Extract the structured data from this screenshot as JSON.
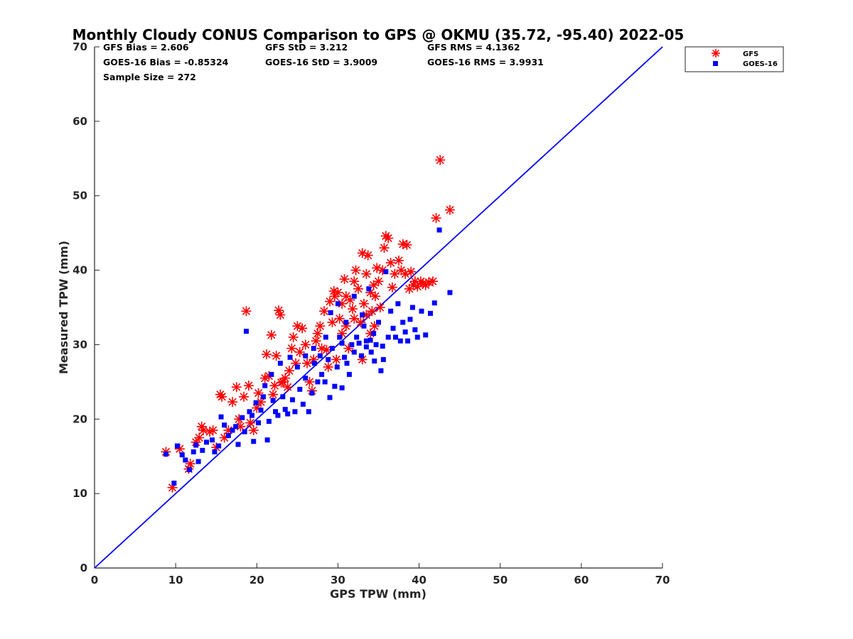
{
  "chart_data": {
    "type": "scatter",
    "title": "Monthly Cloudy CONUS Comparison to GPS @ OKMU (35.72, -95.40) 2022-05",
    "xlabel": "GPS TPW (mm)",
    "ylabel": "Measured TPW (mm)",
    "xlim": [
      0,
      70
    ],
    "ylim": [
      0,
      70
    ],
    "xticks": [
      "0",
      "10",
      "20",
      "30",
      "40",
      "50",
      "60",
      "70"
    ],
    "yticks": [
      "0",
      "10",
      "20",
      "30",
      "40",
      "50",
      "60",
      "70"
    ],
    "grid": false,
    "legend_position": "top-right",
    "reference_line": {
      "from": [
        0,
        0
      ],
      "to": [
        70,
        70
      ],
      "color": "#0000ff"
    },
    "stats": {
      "gfs_bias": "GFS Bias = 2.606",
      "goes_bias": "GOES-16 Bias = -0.85324",
      "sample_size": "Sample Size = 272",
      "gfs_std": "GFS StD = 3.212",
      "goes_std": "GOES-16 StD = 3.9009",
      "gfs_rms": "GFS RMS = 4.1362",
      "goes_rms": "GOES-16 RMS = 3.9931"
    },
    "series": [
      {
        "name": "GFS",
        "marker": "asterisk",
        "color": "#ff0000",
        "points": [
          [
            8.8,
            15.6
          ],
          [
            9.6,
            10.8
          ],
          [
            10.5,
            16.0
          ],
          [
            11.6,
            13.3
          ],
          [
            11.8,
            14.0
          ],
          [
            12.5,
            16.9
          ],
          [
            12.9,
            17.5
          ],
          [
            13.2,
            19.0
          ],
          [
            13.4,
            18.5
          ],
          [
            14.2,
            18.3
          ],
          [
            14.6,
            18.5
          ],
          [
            15.0,
            16.2
          ],
          [
            15.5,
            23.3
          ],
          [
            15.7,
            23.0
          ],
          [
            16.0,
            17.5
          ],
          [
            16.5,
            18.5
          ],
          [
            17.0,
            22.3
          ],
          [
            17.5,
            24.3
          ],
          [
            17.8,
            20.0
          ],
          [
            18.0,
            19.0
          ],
          [
            18.4,
            23.0
          ],
          [
            18.7,
            34.5
          ],
          [
            19.0,
            24.5
          ],
          [
            19.2,
            19.5
          ],
          [
            19.6,
            18.5
          ],
          [
            20.0,
            21.5
          ],
          [
            20.2,
            23.5
          ],
          [
            20.5,
            22.3
          ],
          [
            21.0,
            25.5
          ],
          [
            21.2,
            28.7
          ],
          [
            21.5,
            25.8
          ],
          [
            21.8,
            31.3
          ],
          [
            22.0,
            23.3
          ],
          [
            22.2,
            24.5
          ],
          [
            22.4,
            28.5
          ],
          [
            22.7,
            34.6
          ],
          [
            22.9,
            34.0
          ],
          [
            23.0,
            24.9
          ],
          [
            23.2,
            25.0
          ],
          [
            23.5,
            25.5
          ],
          [
            23.8,
            24.3
          ],
          [
            24.0,
            26.5
          ],
          [
            24.3,
            29.5
          ],
          [
            24.5,
            31.0
          ],
          [
            24.8,
            27.5
          ],
          [
            25.0,
            32.5
          ],
          [
            25.3,
            29.0
          ],
          [
            25.6,
            32.2
          ],
          [
            26.0,
            30.0
          ],
          [
            26.2,
            27.5
          ],
          [
            26.5,
            25.0
          ],
          [
            26.8,
            23.8
          ],
          [
            27.0,
            28.0
          ],
          [
            27.3,
            30.5
          ],
          [
            27.5,
            31.5
          ],
          [
            27.8,
            32.5
          ],
          [
            28.0,
            29.5
          ],
          [
            28.3,
            34.5
          ],
          [
            28.6,
            29.3
          ],
          [
            28.8,
            27.0
          ],
          [
            29.0,
            35.8
          ],
          [
            29.3,
            33.0
          ],
          [
            29.6,
            36.5
          ],
          [
            29.8,
            28.0
          ],
          [
            30.0,
            37.0
          ],
          [
            30.2,
            33.5
          ],
          [
            30.5,
            35.5
          ],
          [
            30.8,
            38.8
          ],
          [
            31.0,
            32.5
          ],
          [
            31.3,
            29.5
          ],
          [
            31.5,
            36.0
          ],
          [
            31.8,
            34.8
          ],
          [
            32.0,
            38.5
          ],
          [
            32.2,
            40.0
          ],
          [
            32.5,
            37.5
          ],
          [
            32.8,
            33.0
          ],
          [
            33.0,
            42.3
          ],
          [
            33.2,
            35.5
          ],
          [
            33.5,
            39.5
          ],
          [
            33.7,
            42.0
          ],
          [
            34.0,
            37.0
          ],
          [
            34.2,
            34.5
          ],
          [
            34.4,
            38.0
          ],
          [
            34.6,
            36.5
          ],
          [
            34.8,
            40.3
          ],
          [
            35.0,
            38.5
          ],
          [
            35.2,
            35.0
          ],
          [
            35.5,
            40.0
          ],
          [
            35.7,
            43.0
          ],
          [
            35.9,
            44.6
          ],
          [
            36.2,
            44.3
          ],
          [
            36.5,
            41.0
          ],
          [
            36.7,
            37.7
          ],
          [
            37.0,
            39.5
          ],
          [
            37.5,
            41.3
          ],
          [
            37.8,
            40.0
          ],
          [
            38.0,
            43.5
          ],
          [
            38.3,
            39.5
          ],
          [
            38.5,
            43.4
          ],
          [
            38.8,
            37.5
          ],
          [
            39.0,
            39.8
          ],
          [
            39.3,
            38.0
          ],
          [
            39.5,
            38.5
          ],
          [
            39.8,
            37.8
          ],
          [
            40.2,
            38.5
          ],
          [
            40.5,
            38.2
          ],
          [
            40.8,
            38.0
          ],
          [
            41.2,
            38.4
          ],
          [
            41.7,
            38.5
          ],
          [
            42.1,
            47.0
          ],
          [
            42.6,
            54.8
          ],
          [
            43.8,
            48.1
          ],
          [
            33.0,
            28.0
          ],
          [
            34.0,
            31.5
          ],
          [
            31.0,
            36.5
          ],
          [
            30.5,
            31.5
          ],
          [
            32.0,
            33.5
          ],
          [
            33.5,
            34.0
          ],
          [
            34.5,
            32.5
          ],
          [
            29.5,
            37.2
          ]
        ]
      },
      {
        "name": "GOES-16",
        "marker": "square",
        "color": "#0000ff",
        "points": [
          [
            8.8,
            15.3
          ],
          [
            9.8,
            11.4
          ],
          [
            10.2,
            16.4
          ],
          [
            10.8,
            15.2
          ],
          [
            11.2,
            14.5
          ],
          [
            11.7,
            13.2
          ],
          [
            12.2,
            15.6
          ],
          [
            12.5,
            16.5
          ],
          [
            12.8,
            14.3
          ],
          [
            13.3,
            15.8
          ],
          [
            13.8,
            16.9
          ],
          [
            14.5,
            17.2
          ],
          [
            14.8,
            15.6
          ],
          [
            15.3,
            16.4
          ],
          [
            15.6,
            20.3
          ],
          [
            16.0,
            19.2
          ],
          [
            16.5,
            17.8
          ],
          [
            17.0,
            18.5
          ],
          [
            17.4,
            19.0
          ],
          [
            17.7,
            16.6
          ],
          [
            18.2,
            20.2
          ],
          [
            18.5,
            18.3
          ],
          [
            18.7,
            31.8
          ],
          [
            19.1,
            21.0
          ],
          [
            19.4,
            20.5
          ],
          [
            19.6,
            17.0
          ],
          [
            19.9,
            22.2
          ],
          [
            20.2,
            19.5
          ],
          [
            20.5,
            21.2
          ],
          [
            20.8,
            23.0
          ],
          [
            21.0,
            24.5
          ],
          [
            21.3,
            17.2
          ],
          [
            21.5,
            19.7
          ],
          [
            21.8,
            26.0
          ],
          [
            22.0,
            22.5
          ],
          [
            22.3,
            21.0
          ],
          [
            22.6,
            20.5
          ],
          [
            22.9,
            27.5
          ],
          [
            23.2,
            23.0
          ],
          [
            23.5,
            21.3
          ],
          [
            23.8,
            20.7
          ],
          [
            24.1,
            28.3
          ],
          [
            24.4,
            22.6
          ],
          [
            24.7,
            21.0
          ],
          [
            25.0,
            27.0
          ],
          [
            25.3,
            24.0
          ],
          [
            25.7,
            22.0
          ],
          [
            26.0,
            25.5
          ],
          [
            26.4,
            21.0
          ],
          [
            26.8,
            23.5
          ],
          [
            27.1,
            27.5
          ],
          [
            27.5,
            25.0
          ],
          [
            27.8,
            28.5
          ],
          [
            28.0,
            26.0
          ],
          [
            28.4,
            25.0
          ],
          [
            28.8,
            28.0
          ],
          [
            29.1,
            34.3
          ],
          [
            29.3,
            29.5
          ],
          [
            29.6,
            24.4
          ],
          [
            29.9,
            27.0
          ],
          [
            30.2,
            31.0
          ],
          [
            30.5,
            24.2
          ],
          [
            30.8,
            28.3
          ],
          [
            31.1,
            27.5
          ],
          [
            31.4,
            26.0
          ],
          [
            31.7,
            30.0
          ],
          [
            32.0,
            29.0
          ],
          [
            32.3,
            31.0
          ],
          [
            32.6,
            30.2
          ],
          [
            32.9,
            28.5
          ],
          [
            33.2,
            32.5
          ],
          [
            33.5,
            30.5
          ],
          [
            33.8,
            37.5
          ],
          [
            34.1,
            29.0
          ],
          [
            34.4,
            31.5
          ],
          [
            34.7,
            30.0
          ],
          [
            35.0,
            33.0
          ],
          [
            35.3,
            26.5
          ],
          [
            35.6,
            28.0
          ],
          [
            35.9,
            39.8
          ],
          [
            36.2,
            31.0
          ],
          [
            36.5,
            34.5
          ],
          [
            36.8,
            32.2
          ],
          [
            37.1,
            31.0
          ],
          [
            37.4,
            35.5
          ],
          [
            37.7,
            30.5
          ],
          [
            38.0,
            33.0
          ],
          [
            38.3,
            31.7
          ],
          [
            38.6,
            30.5
          ],
          [
            38.9,
            33.4
          ],
          [
            39.2,
            35.0
          ],
          [
            39.5,
            32.0
          ],
          [
            39.8,
            31.0
          ],
          [
            40.3,
            34.5
          ],
          [
            40.8,
            31.3
          ],
          [
            41.4,
            34.2
          ],
          [
            41.9,
            35.6
          ],
          [
            42.5,
            45.4
          ],
          [
            43.8,
            37.0
          ],
          [
            30.0,
            35.5
          ],
          [
            31.0,
            33.0
          ],
          [
            32.0,
            36.5
          ],
          [
            33.0,
            34.0
          ],
          [
            34.5,
            27.8
          ],
          [
            28.5,
            31.0
          ],
          [
            27.0,
            29.5
          ],
          [
            26.0,
            28.5
          ],
          [
            29.0,
            22.9
          ],
          [
            33.5,
            29.7
          ],
          [
            34.0,
            30.6
          ],
          [
            35.5,
            29.8
          ],
          [
            30.5,
            30.2
          ]
        ]
      }
    ]
  }
}
